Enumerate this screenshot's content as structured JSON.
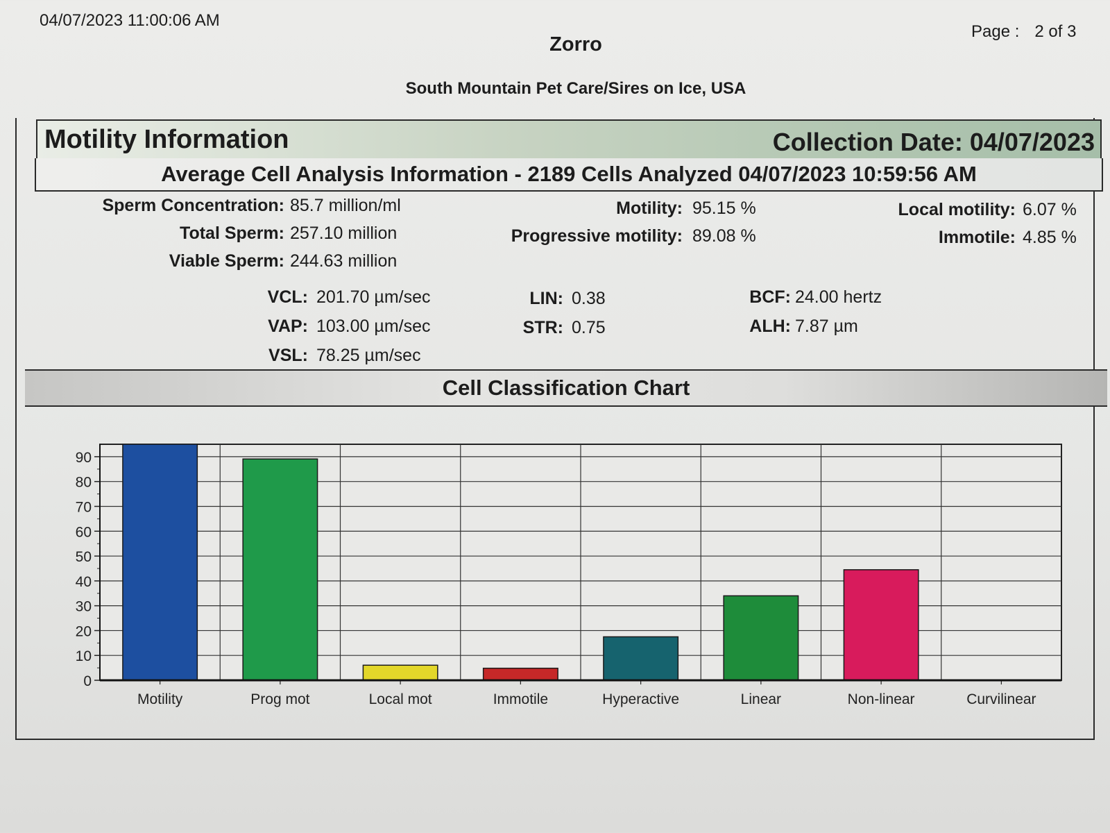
{
  "header": {
    "timestamp": "04/07/2023 11:00:06 AM",
    "page_label": "Page :",
    "page_value": "2 of 3",
    "title": "Zorro",
    "clinic": "South Mountain Pet Care/Sires on Ice, USA"
  },
  "motility_info": {
    "title": "Motility Information",
    "collection_date": "Collection Date: 04/07/2023"
  },
  "average_analysis": {
    "title": "Average Cell Analysis Information - 2189 Cells Analyzed 04/07/2023 10:59:56 AM"
  },
  "metrics": {
    "sperm_concentration": {
      "label": "Sperm Concentration:",
      "value": "85.7 million/ml"
    },
    "total_sperm": {
      "label": "Total Sperm:",
      "value": "257.10 million"
    },
    "viable_sperm": {
      "label": "Viable Sperm:",
      "value": "244.63 million"
    },
    "motility": {
      "label": "Motility:",
      "value": "95.15 %"
    },
    "progressive_motility": {
      "label": "Progressive motility:",
      "value": "89.08 %"
    },
    "local_motility": {
      "label": "Local motility:",
      "value": "6.07 %"
    },
    "immotile": {
      "label": "Immotile:",
      "value": "4.85 %"
    },
    "vcl": {
      "label": "VCL:",
      "value": "201.70 µm/sec"
    },
    "vap": {
      "label": "VAP:",
      "value": "103.00 µm/sec"
    },
    "vsl": {
      "label": "VSL:",
      "value": "78.25 µm/sec"
    },
    "lin": {
      "label": "LIN:",
      "value": "0.38"
    },
    "str": {
      "label": "STR:",
      "value": "0.75"
    },
    "bcf": {
      "label": "BCF:",
      "value": "24.00 hertz"
    },
    "alh": {
      "label": "ALH:",
      "value": "7.87 µm"
    }
  },
  "chart_data": {
    "type": "bar",
    "title": "Cell Classification Chart",
    "categories": [
      "Motility",
      "Prog mot",
      "Local mot",
      "Immotile",
      "Hyperactive",
      "Linear",
      "Non-linear",
      "Curvilinear"
    ],
    "values": [
      95.15,
      89.08,
      6.07,
      4.85,
      17.5,
      34,
      44.5,
      0
    ],
    "colors": [
      "#1d4fa0",
      "#1f9a4a",
      "#e3d72a",
      "#c62828",
      "#16636e",
      "#1e8c3a",
      "#d81b5c",
      "#1d4fa0"
    ],
    "ylim": [
      0,
      95
    ],
    "yticks": [
      "0",
      "10",
      "20",
      "30",
      "40",
      "50",
      "60",
      "70",
      "80",
      "90"
    ],
    "grid": true,
    "xlabel": "",
    "ylabel": ""
  }
}
